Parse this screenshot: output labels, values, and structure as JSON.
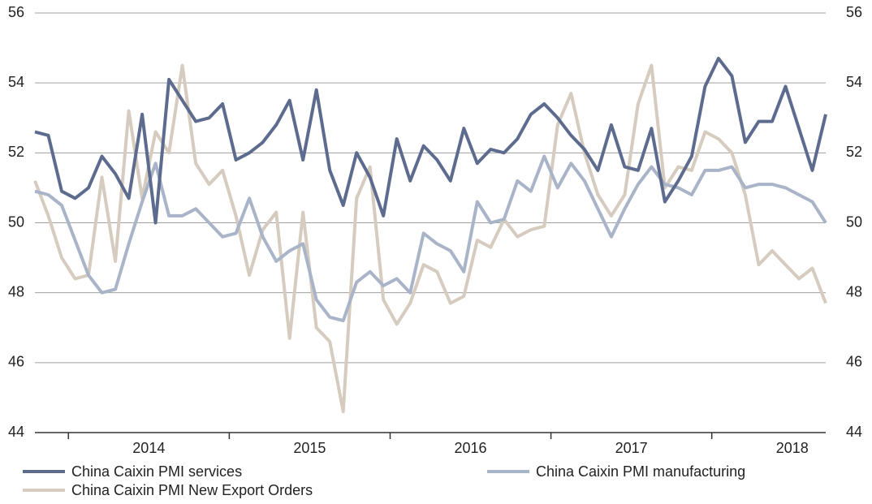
{
  "chart_data": {
    "type": "line",
    "categories": [
      null,
      null,
      null,
      null,
      null,
      null,
      null,
      null,
      "2014",
      null,
      null,
      null,
      null,
      null,
      null,
      null,
      null,
      null,
      null,
      null,
      "2015",
      null,
      null,
      null,
      null,
      null,
      null,
      null,
      null,
      null,
      null,
      null,
      "2016",
      null,
      null,
      null,
      null,
      null,
      null,
      null,
      null,
      null,
      null,
      null,
      "2017",
      null,
      null,
      null,
      null,
      null,
      null,
      null,
      null,
      null,
      null,
      null,
      "2018",
      null,
      null,
      null
    ],
    "series": [
      {
        "name": "China Caixin PMI services",
        "color": "#5d6b8e",
        "values": [
          52.6,
          52.5,
          50.9,
          50.7,
          51.0,
          51.9,
          51.4,
          50.7,
          53.1,
          50.0,
          54.1,
          53.5,
          52.9,
          53.0,
          53.4,
          51.8,
          52.0,
          52.3,
          52.8,
          53.5,
          51.8,
          53.8,
          51.5,
          50.5,
          52.0,
          51.3,
          50.2,
          52.4,
          51.2,
          52.2,
          51.8,
          51.2,
          52.7,
          51.7,
          52.1,
          52.0,
          52.4,
          53.1,
          53.4,
          53.0,
          52.5,
          52.1,
          51.5,
          52.8,
          51.6,
          51.5,
          52.7,
          50.6,
          51.2,
          51.9,
          53.9,
          54.7,
          54.2,
          52.3,
          52.9,
          52.9,
          53.9,
          52.7,
          51.5,
          53.1
        ]
      },
      {
        "name": "China Caixin PMI manufacturing",
        "color": "#a9b4c8",
        "values": [
          50.9,
          50.8,
          50.5,
          49.5,
          48.5,
          48.0,
          48.1,
          49.4,
          50.6,
          51.7,
          50.2,
          50.2,
          50.4,
          50.0,
          49.6,
          49.7,
          50.7,
          49.6,
          48.9,
          49.2,
          49.4,
          47.8,
          47.3,
          47.2,
          48.3,
          48.6,
          48.2,
          48.4,
          48.0,
          49.7,
          49.4,
          49.2,
          48.6,
          50.6,
          50.0,
          50.1,
          51.2,
          50.9,
          51.9,
          51.0,
          51.7,
          51.2,
          50.4,
          49.6,
          50.4,
          51.1,
          51.6,
          51.1,
          51.0,
          50.8,
          51.5,
          51.5,
          51.6,
          51.0,
          51.1,
          51.1,
          51.0,
          50.8,
          50.6,
          50.0
        ]
      },
      {
        "name": "China Caixin PMI New Export Orders",
        "color": "#d6cbbf",
        "values": [
          51.2,
          50.2,
          49.0,
          48.4,
          48.5,
          51.3,
          48.9,
          53.2,
          50.7,
          52.6,
          52.0,
          54.5,
          51.7,
          51.1,
          51.5,
          50.2,
          48.5,
          49.8,
          50.3,
          46.7,
          50.3,
          47.0,
          46.6,
          44.6,
          50.7,
          51.6,
          47.8,
          47.1,
          47.7,
          48.8,
          48.6,
          47.7,
          47.9,
          49.5,
          49.3,
          50.1,
          49.6,
          49.8,
          49.9,
          52.8,
          53.7,
          52.0,
          50.8,
          50.2,
          50.8,
          53.4,
          54.5,
          51.0,
          51.6,
          51.5,
          52.6,
          52.4,
          52.0,
          50.8,
          48.8,
          49.2,
          48.8,
          48.4,
          48.7,
          47.7
        ]
      }
    ],
    "ylim": [
      44,
      56
    ],
    "yticks": [
      44,
      46,
      48,
      50,
      52,
      54,
      56
    ],
    "y2lim": [
      44,
      56
    ],
    "y2ticks": [
      44,
      46,
      48,
      50,
      52,
      54,
      56
    ],
    "grid": true
  }
}
